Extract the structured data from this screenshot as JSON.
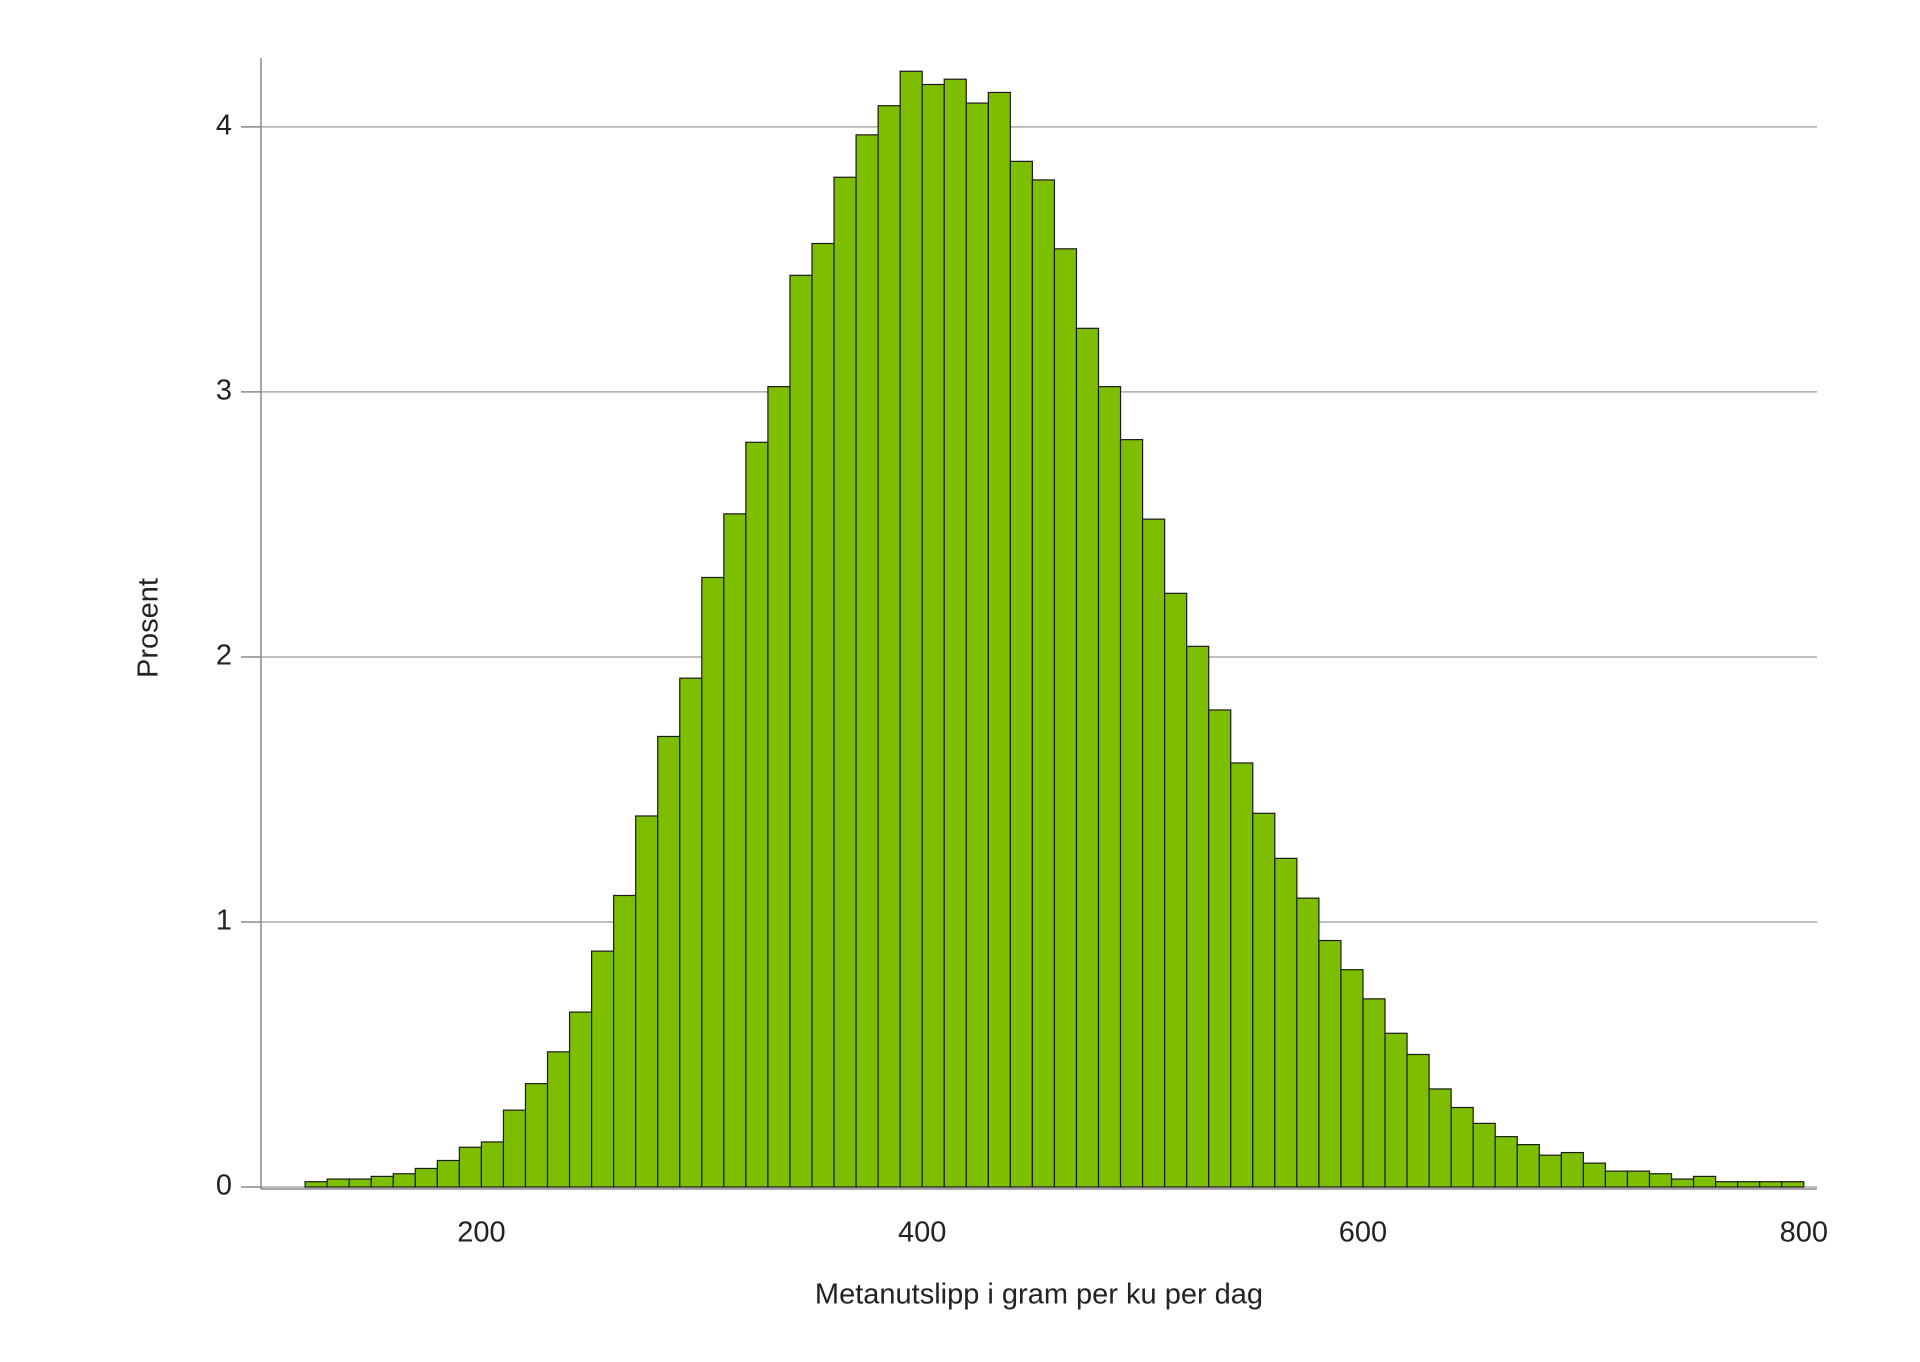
{
  "chart_data": {
    "type": "histogram",
    "xlabel": "Metanutslipp i gram per ku per dag",
    "ylabel": "Prosent",
    "bins": [
      120,
      130,
      140,
      150,
      160,
      170,
      180,
      190,
      200,
      210,
      220,
      230,
      240,
      250,
      260,
      270,
      280,
      290,
      300,
      310,
      320,
      330,
      340,
      350,
      360,
      370,
      380,
      390,
      400,
      410,
      420,
      430,
      440,
      450,
      460,
      470,
      480,
      490,
      500,
      510,
      520,
      530,
      540,
      550,
      560,
      570,
      580,
      590,
      600,
      610,
      620,
      630,
      640,
      650,
      660,
      670,
      680,
      690,
      700,
      710,
      720,
      730,
      740,
      750,
      760,
      770,
      780,
      790,
      800
    ],
    "values": [
      0.02,
      0.03,
      0.03,
      0.04,
      0.05,
      0.07,
      0.1,
      0.15,
      0.17,
      0.29,
      0.39,
      0.51,
      0.66,
      0.89,
      1.1,
      1.4,
      1.7,
      1.92,
      2.3,
      2.54,
      2.81,
      3.02,
      3.44,
      3.56,
      3.81,
      3.97,
      4.08,
      4.21,
      4.16,
      4.18,
      4.09,
      4.13,
      3.87,
      3.8,
      3.54,
      3.24,
      3.02,
      2.82,
      2.52,
      2.24,
      2.04,
      1.8,
      1.6,
      1.41,
      1.24,
      1.09,
      0.93,
      0.82,
      0.71,
      0.58,
      0.5,
      0.37,
      0.3,
      0.24,
      0.19,
      0.16,
      0.12,
      0.13,
      0.09,
      0.06,
      0.06,
      0.05,
      0.03,
      0.04,
      0.02,
      0.02,
      0.02,
      0.02
    ],
    "color": "#7dbe00",
    "xlim": [
      100,
      806
    ],
    "ylim": [
      0,
      4.26
    ],
    "xticks": [
      200,
      400,
      600,
      800
    ],
    "yticks": [
      0,
      1,
      2,
      3,
      4
    ],
    "grid": true
  }
}
